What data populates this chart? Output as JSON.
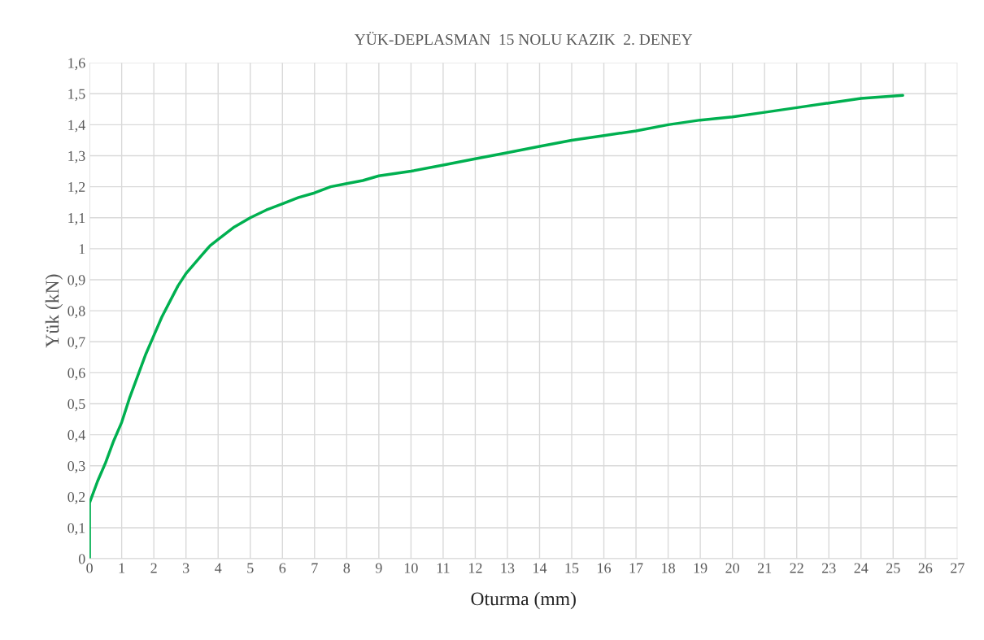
{
  "chart_data": {
    "type": "line",
    "title": "YÜK-DEPLASMAN  15 NOLU KAZIK  2. DENEY",
    "xlabel": "Oturma (mm)",
    "ylabel": "Yük (kN)",
    "x": [
      0,
      0,
      0.25,
      0.5,
      0.75,
      1,
      1.25,
      1.5,
      1.75,
      2,
      2.25,
      2.5,
      2.75,
      3,
      3.25,
      3.5,
      3.75,
      4,
      4.5,
      5,
      5.5,
      6,
      6.5,
      7,
      7.5,
      8,
      8.5,
      9,
      10,
      11,
      12,
      13,
      14,
      15,
      16,
      17,
      18,
      19,
      20,
      21,
      22,
      23,
      24,
      25.3
    ],
    "series": [
      {
        "color": "#00b050",
        "values": [
          0,
          0.18,
          0.25,
          0.31,
          0.38,
          0.44,
          0.52,
          0.59,
          0.66,
          0.72,
          0.78,
          0.83,
          0.88,
          0.92,
          0.95,
          0.98,
          1.01,
          1.03,
          1.07,
          1.1,
          1.125,
          1.145,
          1.165,
          1.18,
          1.2,
          1.21,
          1.22,
          1.235,
          1.25,
          1.27,
          1.29,
          1.31,
          1.33,
          1.35,
          1.365,
          1.38,
          1.4,
          1.415,
          1.425,
          1.44,
          1.455,
          1.47,
          1.485,
          1.495
        ]
      }
    ],
    "xlim": [
      0,
      27
    ],
    "xticks": [
      0,
      1,
      2,
      3,
      4,
      5,
      6,
      7,
      8,
      9,
      10,
      11,
      12,
      13,
      14,
      15,
      16,
      17,
      18,
      19,
      20,
      21,
      22,
      23,
      24,
      25,
      26,
      27
    ],
    "ylim": [
      0,
      1.6
    ],
    "yticks": [
      0,
      {
        "value": 0.1,
        "label": "0,1"
      },
      {
        "value": 0.2,
        "label": "0,2"
      },
      {
        "value": 0.3,
        "label": "0,3"
      },
      {
        "value": 0.4,
        "label": "0,4"
      },
      {
        "value": 0.5,
        "label": "0,5"
      },
      {
        "value": 0.6,
        "label": "0,6"
      },
      {
        "value": 0.7,
        "label": "0,7"
      },
      {
        "value": 0.8,
        "label": "0,8"
      },
      {
        "value": 0.9,
        "label": "0,9"
      },
      1,
      {
        "value": 1.1,
        "label": "1,1"
      },
      {
        "value": 1.2,
        "label": "1,2"
      },
      {
        "value": 1.3,
        "label": "1,3"
      },
      {
        "value": 1.4,
        "label": "1,4"
      },
      {
        "value": 1.5,
        "label": "1,5"
      },
      {
        "value": 1.6,
        "label": "1,6"
      }
    ],
    "grid": true,
    "marker": "none",
    "line_style": "solid"
  }
}
